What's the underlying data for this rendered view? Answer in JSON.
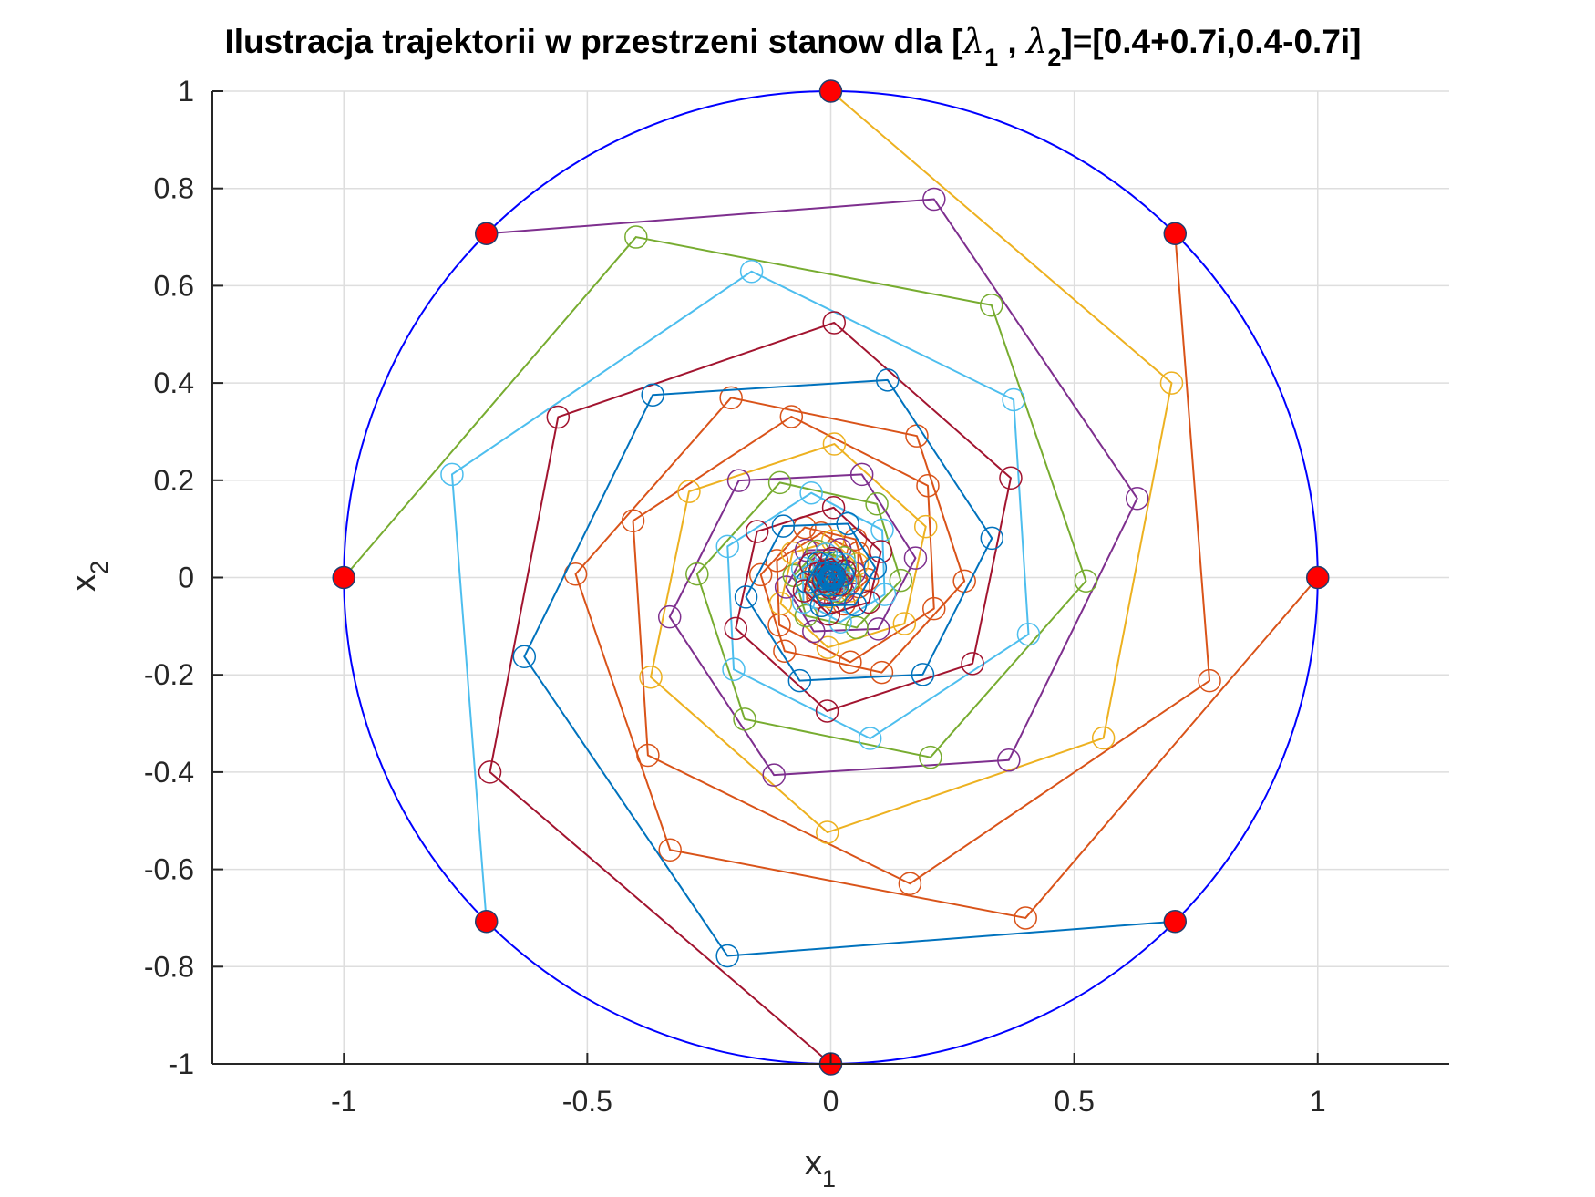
{
  "chart_data": {
    "type": "line",
    "title": {
      "prefix": "Ilustracja trajektorii w przestrzeni stanow dla [",
      "lambda": "λ",
      "sub1": "1",
      "sep": " , ",
      "sub2": "2",
      "suffix": "]=[0.4+0.7i,0.4-0.7i]"
    },
    "xlabel": {
      "main": "x",
      "sub": "1"
    },
    "ylabel": {
      "main": "x",
      "sub": "2"
    },
    "xlim": [
      -1.27,
      1.27
    ],
    "ylim": [
      -1,
      1
    ],
    "xticks": [
      -1,
      -0.5,
      0,
      0.5,
      1
    ],
    "xtick_labels": [
      "-1",
      "-0.5",
      "0",
      "0.5",
      "1"
    ],
    "yticks": [
      -1,
      -0.8,
      -0.6,
      -0.4,
      -0.2,
      0,
      0.2,
      0.4,
      0.6,
      0.8,
      1
    ],
    "ytick_labels": [
      "-1",
      "-0.8",
      "-0.6",
      "-0.4",
      "-0.2",
      "0",
      "0.2",
      "0.4",
      "0.6",
      "0.8",
      "1"
    ],
    "grid": true,
    "system_matrix": [
      [
        0.4,
        0.7
      ],
      [
        -0.7,
        0.4
      ]
    ],
    "steps": 30,
    "unit_circle": {
      "center": [
        0,
        0
      ],
      "radius": 1,
      "color": "#0000ff"
    },
    "start_marker_color": "#ff0000",
    "series": [
      {
        "x0": [
          1,
          0
        ],
        "color": "#d95319"
      },
      {
        "x0": [
          0.7071,
          0.7071
        ],
        "color": "#d95319"
      },
      {
        "x0": [
          0,
          1
        ],
        "color": "#edb120"
      },
      {
        "x0": [
          -0.7071,
          0.7071
        ],
        "color": "#7e2f8e"
      },
      {
        "x0": [
          -1,
          0
        ],
        "color": "#77ac30"
      },
      {
        "x0": [
          -0.7071,
          -0.7071
        ],
        "color": "#4dbeee"
      },
      {
        "x0": [
          0,
          -1
        ],
        "color": "#a2142f"
      },
      {
        "x0": [
          0.7071,
          -0.7071
        ],
        "color": "#0072bd"
      }
    ]
  }
}
